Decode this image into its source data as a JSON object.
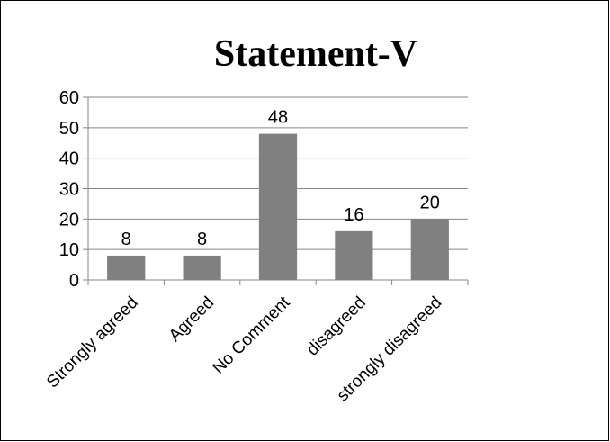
{
  "chart_data": {
    "type": "bar",
    "title": "Statement-V",
    "categories": [
      "Strongly agreed",
      "Agreed",
      "No Comment",
      "disagreed",
      "strongly disagreed"
    ],
    "values": [
      8,
      8,
      48,
      16,
      20
    ],
    "data_labels": [
      "8",
      "8",
      "48",
      "16",
      "20"
    ],
    "yticks": [
      "0",
      "10",
      "20",
      "30",
      "40",
      "50",
      "60"
    ],
    "ylim": [
      0,
      60
    ],
    "grid": true,
    "legend": "none",
    "bar_color": "#808080",
    "grid_color": "#868686"
  }
}
